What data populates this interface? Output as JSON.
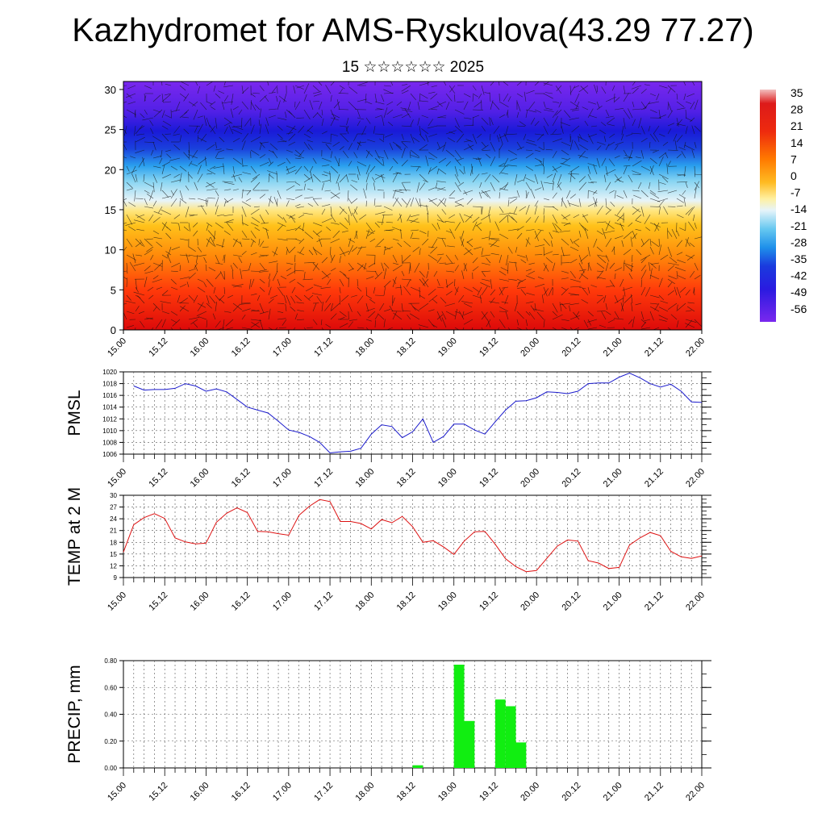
{
  "title": "Kazhydromet for AMS-Ryskulova(43.29 77.27)",
  "subtitle": "15 ☆☆☆☆☆☆ 2025",
  "colors": {
    "pmsl_line": "#1a1acc",
    "temp_line": "#dd1111",
    "precip_bar": "#11ee11"
  },
  "colorbar": {
    "labels": [
      "35",
      "28",
      "21",
      "14",
      "7",
      "0",
      "-7",
      "-14",
      "-21",
      "-28",
      "-35",
      "-42",
      "-49",
      "-56"
    ],
    "stops": [
      "#f0b8b8",
      "#dd1a1a",
      "#ee3311",
      "#ff6a00",
      "#ff9900",
      "#ffcc22",
      "#fff2a0",
      "#dff0f8",
      "#7ad0f0",
      "#2aa8ee",
      "#2060e8",
      "#1a2cd8",
      "#4a1ae8",
      "#7a28ee"
    ]
  },
  "time_labels": [
    "15.00",
    "15.12",
    "16.00",
    "16.12",
    "17.00",
    "17.12",
    "18.00",
    "18.12",
    "19.00",
    "19.12",
    "20.00",
    "20.12",
    "21.00",
    "21.12",
    "22.00"
  ],
  "chart_data": [
    {
      "type": "heatmap",
      "title": "Kazhydromet for AMS-Ryskulova(43.29 77.27)",
      "subtitle": "15 ☆☆☆☆☆☆ 2025",
      "x_tick_labels": [
        "15.00",
        "15.12",
        "16.00",
        "16.12",
        "17.00",
        "17.12",
        "18.00",
        "18.12",
        "19.00",
        "19.12",
        "20.00",
        "20.12",
        "21.00",
        "21.12",
        "22.00"
      ],
      "y_ticks": [
        0,
        5,
        10,
        15,
        20,
        25,
        30
      ],
      "ylim": [
        0,
        31
      ],
      "colorbar_range": [
        -56,
        35
      ]
    },
    {
      "type": "line",
      "ylabel": "PMSL",
      "ylim": [
        1006,
        1020
      ],
      "y_ticks": [
        1006,
        1008,
        1010,
        1012,
        1014,
        1016,
        1018,
        1020
      ],
      "x_tick_labels": [
        "15.00",
        "15.12",
        "16.00",
        "16.12",
        "17.00",
        "17.12",
        "18.00",
        "18.12",
        "19.00",
        "19.12",
        "20.00",
        "20.12",
        "21.00",
        "21.12",
        "22.00"
      ],
      "series": [
        {
          "values": [
            1017.6,
            1016.9,
            1017.0,
            1017.0,
            1017.2,
            1018.0,
            1017.6,
            1016.7,
            1017.1,
            1016.6,
            1015.3,
            1014.0,
            1013.5,
            1013.0,
            1011.6,
            1010.1,
            1009.7,
            1009.0,
            1008.0,
            1006.2,
            1006.4,
            1006.5,
            1007.0,
            1009.4,
            1011.0,
            1010.7,
            1008.8,
            1009.8,
            1012.0,
            1008.0,
            1009.0,
            1011.1,
            1011.1,
            1010.1,
            1009.4,
            1011.5,
            1013.5,
            1015.0,
            1015.1,
            1015.6,
            1016.6,
            1016.5,
            1016.3,
            1016.7,
            1018.0,
            1018.1,
            1018.1,
            1019.1,
            1019.8,
            1019.0,
            1018.0,
            1017.4,
            1017.9,
            1016.7,
            1014.9,
            1014.8
          ]
        }
      ],
      "grid": true
    },
    {
      "type": "line",
      "ylabel": "TEMP at 2 M",
      "ylim": [
        9,
        30
      ],
      "y_ticks": [
        9,
        12,
        15,
        18,
        21,
        24,
        27,
        30
      ],
      "x_tick_labels": [
        "15.00",
        "15.12",
        "16.00",
        "16.12",
        "17.00",
        "17.12",
        "18.00",
        "18.12",
        "19.00",
        "19.12",
        "20.00",
        "20.12",
        "21.00",
        "21.12",
        "22.00"
      ],
      "series": [
        {
          "values": [
            15.5,
            22.5,
            24.3,
            25.3,
            24.1,
            19.1,
            18.1,
            17.6,
            17.8,
            23.1,
            25.4,
            26.8,
            25.6,
            20.8,
            20.7,
            20.2,
            19.8,
            24.9,
            27.2,
            28.9,
            28.4,
            23.3,
            23.3,
            22.8,
            21.4,
            23.8,
            23.0,
            24.6,
            22.0,
            18.0,
            18.4,
            16.8,
            14.9,
            18.3,
            20.7,
            20.8,
            17.5,
            13.8,
            11.8,
            10.5,
            10.8,
            13.9,
            17.0,
            18.6,
            18.3,
            13.3,
            12.7,
            11.3,
            11.6,
            17.3,
            19.1,
            20.5,
            19.7,
            15.7,
            14.3,
            13.9,
            14.5
          ]
        }
      ],
      "grid": true
    },
    {
      "type": "bar",
      "ylabel": "PRECIP, mm",
      "ylim": [
        0,
        0.8
      ],
      "y_ticks": [
        "0.00",
        "0.20",
        "0.40",
        "0.60",
        "0.80"
      ],
      "x_tick_labels": [
        "15.00",
        "15.12",
        "16.00",
        "16.12",
        "17.00",
        "17.12",
        "18.00",
        "18.12",
        "19.00",
        "19.12",
        "20.00",
        "20.12",
        "21.00",
        "21.12",
        "22.00"
      ],
      "bars": [
        {
          "hour": 84,
          "value": 0.02
        },
        {
          "hour": 96,
          "value": 0.77
        },
        {
          "hour": 99,
          "value": 0.35
        },
        {
          "hour": 108,
          "value": 0.51
        },
        {
          "hour": 111,
          "value": 0.46
        },
        {
          "hour": 114,
          "value": 0.19
        }
      ],
      "grid": true
    }
  ]
}
